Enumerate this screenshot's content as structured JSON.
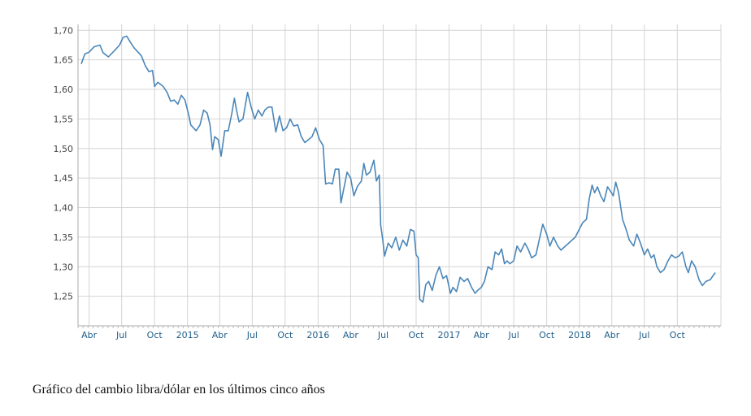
{
  "caption": "Gráfico del cambio libra/dólar en los últimos cinco años",
  "chart_data": {
    "type": "line",
    "title": "",
    "xlabel": "",
    "ylabel": "",
    "grid": true,
    "legend": "none",
    "line_color": "#4a86b8",
    "ylim": [
      1.2,
      1.71
    ],
    "xlim": [
      "2014-03-01",
      "2019-01-31"
    ],
    "y_ticks": [
      "1,25",
      "1,30",
      "1,35",
      "1,40",
      "1,45",
      "1,50",
      "1,55",
      "1,60",
      "1,65",
      "1,70"
    ],
    "y_tick_values": [
      1.25,
      1.3,
      1.35,
      1.4,
      1.45,
      1.5,
      1.55,
      1.6,
      1.65,
      1.7
    ],
    "x_ticks": [
      {
        "label": "Abr",
        "date": "2014-04-01"
      },
      {
        "label": "Jul",
        "date": "2014-07-01"
      },
      {
        "label": "Oct",
        "date": "2014-10-01"
      },
      {
        "label": "2015",
        "date": "2015-01-01"
      },
      {
        "label": "Abr",
        "date": "2015-04-01"
      },
      {
        "label": "Jul",
        "date": "2015-07-01"
      },
      {
        "label": "Oct",
        "date": "2015-10-01"
      },
      {
        "label": "2016",
        "date": "2016-01-01"
      },
      {
        "label": "Abr",
        "date": "2016-04-01"
      },
      {
        "label": "Jul",
        "date": "2016-07-01"
      },
      {
        "label": "Oct",
        "date": "2016-10-01"
      },
      {
        "label": "2017",
        "date": "2017-01-01"
      },
      {
        "label": "Abr",
        "date": "2017-04-01"
      },
      {
        "label": "Jul",
        "date": "2017-07-01"
      },
      {
        "label": "Oct",
        "date": "2017-10-01"
      },
      {
        "label": "2018",
        "date": "2018-01-01"
      },
      {
        "label": "Abr",
        "date": "2018-04-01"
      },
      {
        "label": "Jul",
        "date": "2018-07-01"
      },
      {
        "label": "Oct",
        "date": "2018-10-01"
      }
    ],
    "series": [
      {
        "points": [
          [
            "2014-03-10",
            1.643
          ],
          [
            "2014-03-20",
            1.66
          ],
          [
            "2014-04-01",
            1.663
          ],
          [
            "2014-04-15",
            1.672
          ],
          [
            "2014-05-01",
            1.675
          ],
          [
            "2014-05-10",
            1.662
          ],
          [
            "2014-05-25",
            1.655
          ],
          [
            "2014-06-10",
            1.665
          ],
          [
            "2014-06-25",
            1.675
          ],
          [
            "2014-07-05",
            1.688
          ],
          [
            "2014-07-15",
            1.69
          ],
          [
            "2014-07-25",
            1.68
          ],
          [
            "2014-08-05",
            1.67
          ],
          [
            "2014-08-25",
            1.657
          ],
          [
            "2014-09-05",
            1.64
          ],
          [
            "2014-09-15",
            1.63
          ],
          [
            "2014-09-25",
            1.632
          ],
          [
            "2014-10-01",
            1.605
          ],
          [
            "2014-10-10",
            1.612
          ],
          [
            "2014-10-25",
            1.605
          ],
          [
            "2014-11-05",
            1.595
          ],
          [
            "2014-11-15",
            1.58
          ],
          [
            "2014-11-25",
            1.582
          ],
          [
            "2014-12-05",
            1.575
          ],
          [
            "2014-12-15",
            1.59
          ],
          [
            "2014-12-25",
            1.582
          ],
          [
            "2015-01-05",
            1.555
          ],
          [
            "2015-01-10",
            1.54
          ],
          [
            "2015-01-25",
            1.53
          ],
          [
            "2015-02-05",
            1.54
          ],
          [
            "2015-02-15",
            1.565
          ],
          [
            "2015-02-25",
            1.56
          ],
          [
            "2015-03-05",
            1.54
          ],
          [
            "2015-03-12",
            1.498
          ],
          [
            "2015-03-18",
            1.52
          ],
          [
            "2015-03-28",
            1.515
          ],
          [
            "2015-04-05",
            1.487
          ],
          [
            "2015-04-15",
            1.53
          ],
          [
            "2015-04-25",
            1.53
          ],
          [
            "2015-05-05",
            1.56
          ],
          [
            "2015-05-12",
            1.585
          ],
          [
            "2015-05-18",
            1.565
          ],
          [
            "2015-05-25",
            1.545
          ],
          [
            "2015-06-05",
            1.55
          ],
          [
            "2015-06-18",
            1.595
          ],
          [
            "2015-06-28",
            1.57
          ],
          [
            "2015-07-08",
            1.55
          ],
          [
            "2015-07-18",
            1.565
          ],
          [
            "2015-07-28",
            1.555
          ],
          [
            "2015-08-05",
            1.565
          ],
          [
            "2015-08-15",
            1.57
          ],
          [
            "2015-08-25",
            1.57
          ],
          [
            "2015-09-05",
            1.528
          ],
          [
            "2015-09-15",
            1.555
          ],
          [
            "2015-09-25",
            1.53
          ],
          [
            "2015-10-05",
            1.535
          ],
          [
            "2015-10-15",
            1.55
          ],
          [
            "2015-10-25",
            1.538
          ],
          [
            "2015-11-05",
            1.54
          ],
          [
            "2015-11-15",
            1.52
          ],
          [
            "2015-11-25",
            1.51
          ],
          [
            "2015-12-05",
            1.515
          ],
          [
            "2015-12-15",
            1.52
          ],
          [
            "2015-12-25",
            1.535
          ],
          [
            "2016-01-05",
            1.515
          ],
          [
            "2016-01-15",
            1.505
          ],
          [
            "2016-01-22",
            1.44
          ],
          [
            "2016-02-01",
            1.442
          ],
          [
            "2016-02-10",
            1.44
          ],
          [
            "2016-02-18",
            1.465
          ],
          [
            "2016-02-28",
            1.465
          ],
          [
            "2016-03-05",
            1.408
          ],
          [
            "2016-03-15",
            1.438
          ],
          [
            "2016-03-22",
            1.46
          ],
          [
            "2016-04-01",
            1.45
          ],
          [
            "2016-04-10",
            1.42
          ],
          [
            "2016-04-20",
            1.436
          ],
          [
            "2016-05-01",
            1.445
          ],
          [
            "2016-05-08",
            1.475
          ],
          [
            "2016-05-15",
            1.455
          ],
          [
            "2016-05-25",
            1.46
          ],
          [
            "2016-06-05",
            1.48
          ],
          [
            "2016-06-12",
            1.445
          ],
          [
            "2016-06-20",
            1.455
          ],
          [
            "2016-06-24",
            1.37
          ],
          [
            "2016-06-30",
            1.345
          ],
          [
            "2016-07-05",
            1.318
          ],
          [
            "2016-07-15",
            1.34
          ],
          [
            "2016-07-25",
            1.332
          ],
          [
            "2016-08-05",
            1.35
          ],
          [
            "2016-08-15",
            1.328
          ],
          [
            "2016-08-25",
            1.345
          ],
          [
            "2016-09-05",
            1.335
          ],
          [
            "2016-09-15",
            1.363
          ],
          [
            "2016-09-25",
            1.36
          ],
          [
            "2016-10-01",
            1.32
          ],
          [
            "2016-10-07",
            1.315
          ],
          [
            "2016-10-11",
            1.245
          ],
          [
            "2016-10-20",
            1.24
          ],
          [
            "2016-10-28",
            1.27
          ],
          [
            "2016-11-05",
            1.275
          ],
          [
            "2016-11-15",
            1.26
          ],
          [
            "2016-11-25",
            1.285
          ],
          [
            "2016-12-05",
            1.3
          ],
          [
            "2016-12-15",
            1.28
          ],
          [
            "2016-12-25",
            1.285
          ],
          [
            "2017-01-05",
            1.255
          ],
          [
            "2017-01-12",
            1.265
          ],
          [
            "2017-01-22",
            1.258
          ],
          [
            "2017-02-01",
            1.282
          ],
          [
            "2017-02-12",
            1.275
          ],
          [
            "2017-02-22",
            1.28
          ],
          [
            "2017-03-05",
            1.265
          ],
          [
            "2017-03-15",
            1.255
          ],
          [
            "2017-03-22",
            1.26
          ],
          [
            "2017-04-01",
            1.265
          ],
          [
            "2017-04-10",
            1.275
          ],
          [
            "2017-04-20",
            1.3
          ],
          [
            "2017-05-01",
            1.295
          ],
          [
            "2017-05-10",
            1.325
          ],
          [
            "2017-05-20",
            1.32
          ],
          [
            "2017-05-28",
            1.33
          ],
          [
            "2017-06-05",
            1.305
          ],
          [
            "2017-06-12",
            1.31
          ],
          [
            "2017-06-20",
            1.305
          ],
          [
            "2017-07-01",
            1.31
          ],
          [
            "2017-07-10",
            1.335
          ],
          [
            "2017-07-20",
            1.325
          ],
          [
            "2017-08-01",
            1.34
          ],
          [
            "2017-08-10",
            1.33
          ],
          [
            "2017-08-20",
            1.315
          ],
          [
            "2017-09-01",
            1.32
          ],
          [
            "2017-09-10",
            1.345
          ],
          [
            "2017-09-20",
            1.372
          ],
          [
            "2017-10-01",
            1.355
          ],
          [
            "2017-10-10",
            1.335
          ],
          [
            "2017-10-20",
            1.35
          ],
          [
            "2017-11-01",
            1.335
          ],
          [
            "2017-11-10",
            1.328
          ],
          [
            "2017-12-20",
            1.35
          ],
          [
            "2018-01-10",
            1.375
          ],
          [
            "2018-01-20",
            1.38
          ],
          [
            "2018-01-28",
            1.415
          ],
          [
            "2018-02-05",
            1.438
          ],
          [
            "2018-02-12",
            1.425
          ],
          [
            "2018-02-20",
            1.435
          ],
          [
            "2018-03-01",
            1.42
          ],
          [
            "2018-03-10",
            1.41
          ],
          [
            "2018-03-20",
            1.435
          ],
          [
            "2018-03-28",
            1.428
          ],
          [
            "2018-04-05",
            1.42
          ],
          [
            "2018-04-12",
            1.443
          ],
          [
            "2018-04-20",
            1.425
          ],
          [
            "2018-05-01",
            1.38
          ],
          [
            "2018-05-10",
            1.365
          ],
          [
            "2018-05-20",
            1.345
          ],
          [
            "2018-06-01",
            1.335
          ],
          [
            "2018-06-10",
            1.355
          ],
          [
            "2018-06-20",
            1.34
          ],
          [
            "2018-07-01",
            1.32
          ],
          [
            "2018-07-10",
            1.33
          ],
          [
            "2018-07-20",
            1.315
          ],
          [
            "2018-07-28",
            1.32
          ],
          [
            "2018-08-05",
            1.3
          ],
          [
            "2018-08-15",
            1.29
          ],
          [
            "2018-08-25",
            1.295
          ],
          [
            "2018-09-05",
            1.31
          ],
          [
            "2018-09-15",
            1.32
          ],
          [
            "2018-09-25",
            1.315
          ],
          [
            "2018-10-05",
            1.318
          ],
          [
            "2018-10-15",
            1.325
          ],
          [
            "2018-10-25",
            1.3
          ],
          [
            "2018-11-01",
            1.29
          ],
          [
            "2018-11-10",
            1.31
          ],
          [
            "2018-11-20",
            1.3
          ],
          [
            "2018-12-01",
            1.278
          ],
          [
            "2018-12-10",
            1.268
          ],
          [
            "2018-12-20",
            1.275
          ],
          [
            "2019-01-01",
            1.278
          ],
          [
            "2019-01-15",
            1.29
          ]
        ]
      }
    ]
  }
}
